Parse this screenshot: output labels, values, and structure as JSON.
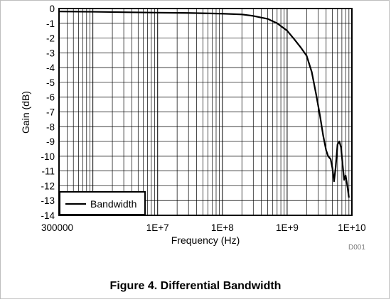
{
  "figure": {
    "caption": "Figure 4. Differential Bandwidth",
    "code": "D001"
  },
  "chart_data": {
    "type": "line",
    "xlabel": "Frequency (Hz)",
    "ylabel": "Gain (dB)",
    "xscale": "log",
    "xlim": [
      300000,
      10000000000
    ],
    "ylim": [
      -14,
      0
    ],
    "x_tick_labels": [
      {
        "value": 300000,
        "label": "300000"
      },
      {
        "value": 10000000,
        "label": "1E+7"
      },
      {
        "value": 100000000,
        "label": "1E+8"
      },
      {
        "value": 1000000000,
        "label": "1E+9"
      },
      {
        "value": 10000000000,
        "label": "1E+10"
      }
    ],
    "y_ticks": [
      0,
      -1,
      -2,
      -3,
      -4,
      -5,
      -6,
      -7,
      -8,
      -9,
      -10,
      -11,
      -12,
      -13,
      -14
    ],
    "grid": true,
    "legend": {
      "position": "bottom-left",
      "entries": [
        "Bandwidth"
      ]
    },
    "series": [
      {
        "name": "Bandwidth",
        "color": "#000000",
        "x": [
          300000,
          1000000,
          3000000,
          10000000,
          30000000,
          100000000,
          200000000,
          300000000,
          500000000,
          700000000,
          1000000000,
          1300000000,
          1600000000,
          2000000000,
          2400000000,
          2800000000,
          3200000000,
          3600000000,
          4000000000,
          4300000000,
          4700000000,
          5000000000,
          5300000000,
          5600000000,
          6000000000,
          6400000000,
          6800000000,
          7200000000,
          7600000000,
          8000000000,
          8500000000,
          9000000000
        ],
        "y": [
          -0.2,
          -0.22,
          -0.25,
          -0.28,
          -0.3,
          -0.35,
          -0.4,
          -0.5,
          -0.7,
          -1.0,
          -1.5,
          -2.1,
          -2.6,
          -3.2,
          -4.3,
          -5.8,
          -7.2,
          -8.6,
          -9.6,
          -10.0,
          -10.2,
          -10.8,
          -11.7,
          -10.8,
          -9.2,
          -9.0,
          -9.4,
          -10.6,
          -11.6,
          -11.3,
          -12.0,
          -12.8
        ]
      }
    ]
  }
}
